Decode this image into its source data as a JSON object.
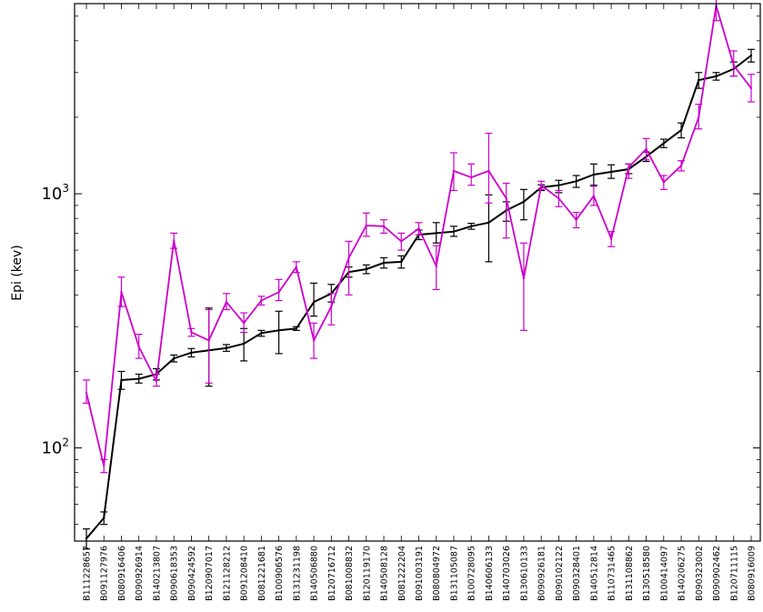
{
  "chart_data": {
    "type": "line",
    "title": "",
    "xlabel": "",
    "ylabel": "Epi (kev)",
    "yscale": "log",
    "ylim": [
      43,
      5600
    ],
    "yticks": [
      {
        "value": 100,
        "label": "10",
        "sup": "2"
      },
      {
        "value": 1000,
        "label": "10",
        "sup": "3"
      }
    ],
    "grid": false,
    "legend": "none",
    "categories": [
      "B111228657",
      "B091127976",
      "B080916406",
      "B090926914",
      "B140213807",
      "B090618353",
      "B090424592",
      "B120907017",
      "B121128212",
      "B091208410",
      "B081221681",
      "B100906576",
      "B131231198",
      "B140506880",
      "B120716712",
      "B081008832",
      "B120119170",
      "B140508128",
      "B081222204",
      "B091003191",
      "B080804972",
      "B131105087",
      "B100728095",
      "B140606133",
      "B140703026",
      "B130610133",
      "B090926181",
      "B090102122",
      "B090328401",
      "B140512814",
      "B110731465",
      "B131108862",
      "B130518580",
      "B100414097",
      "B140206275",
      "B090323002",
      "B090902462",
      "B120711115",
      "B080916009"
    ],
    "series": [
      {
        "color": "#000000",
        "values": [
          44,
          53,
          185,
          187,
          195,
          225,
          237,
          242,
          247,
          257,
          283,
          290,
          295,
          375,
          405,
          492,
          505,
          535,
          540,
          690,
          700,
          710,
          745,
          770,
          860,
          930,
          1060,
          1080,
          1120,
          1190,
          1220,
          1250,
          1400,
          1580,
          1780,
          2800,
          2900,
          3100,
          3500
        ],
        "err_low": [
          40,
          50,
          170,
          180,
          185,
          218,
          228,
          175,
          240,
          220,
          275,
          235,
          290,
          330,
          375,
          470,
          485,
          510,
          510,
          660,
          640,
          680,
          725,
          540,
          780,
          790,
          1030,
          1010,
          1060,
          1080,
          1150,
          1200,
          1340,
          1520,
          1660,
          2600,
          2800,
          2900,
          3300
        ],
        "err_high": [
          48,
          56,
          200,
          195,
          205,
          232,
          246,
          355,
          255,
          295,
          290,
          345,
          300,
          445,
          440,
          515,
          525,
          560,
          570,
          720,
          770,
          745,
          765,
          990,
          930,
          1040,
          1085,
          1130,
          1180,
          1310,
          1300,
          1310,
          1460,
          1640,
          1900,
          3000,
          3000,
          3300,
          3700
        ]
      },
      {
        "color": "#cc00cc",
        "values": [
          165,
          85,
          410,
          250,
          183,
          655,
          285,
          265,
          375,
          310,
          380,
          410,
          515,
          265,
          360,
          560,
          750,
          745,
          650,
          730,
          520,
          1230,
          1160,
          1230,
          960,
          465,
          1080,
          960,
          790,
          980,
          665,
          1270,
          1500,
          1110,
          1290,
          2000,
          5500,
          3200,
          2600
        ],
        "err_low": [
          150,
          80,
          360,
          225,
          175,
          610,
          275,
          180,
          350,
          285,
          365,
          380,
          490,
          225,
          305,
          400,
          680,
          700,
          600,
          690,
          420,
          1030,
          1080,
          920,
          670,
          290,
          1040,
          890,
          735,
          900,
          620,
          1150,
          1360,
          1040,
          1230,
          1800,
          4800,
          2900,
          2300
        ],
        "err_high": [
          185,
          90,
          470,
          280,
          195,
          700,
          295,
          350,
          405,
          340,
          395,
          460,
          540,
          310,
          405,
          650,
          840,
          790,
          700,
          770,
          625,
          1450,
          1310,
          1730,
          1100,
          640,
          1120,
          1030,
          845,
          1070,
          710,
          1310,
          1650,
          1180,
          1350,
          2250,
          5900,
          3650,
          2950
        ]
      }
    ]
  }
}
